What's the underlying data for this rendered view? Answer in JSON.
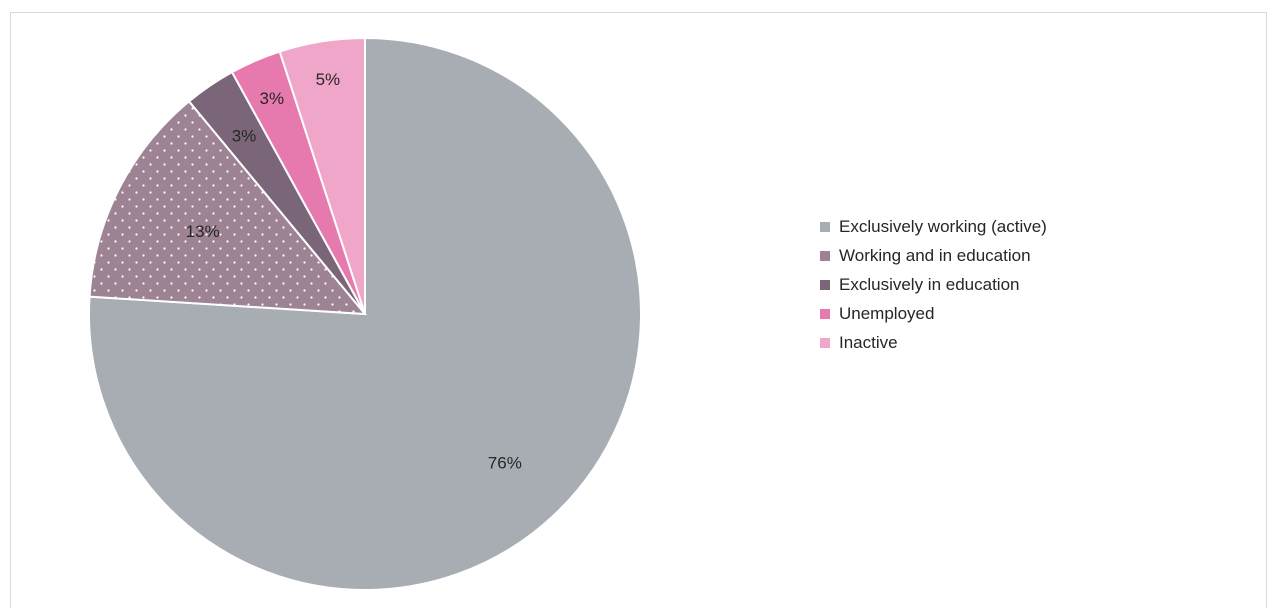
{
  "chart_data": {
    "type": "pie",
    "title": "",
    "categories": [
      "Exclusively working (active)",
      "Working and in education",
      "Exclusively in education",
      "Unemployed",
      "Inactive"
    ],
    "values": [
      76,
      13,
      3,
      3,
      5
    ],
    "data_labels": [
      "76%",
      "13%",
      "3%",
      "3%",
      "5%"
    ],
    "colors": [
      "#a8adb3",
      "#9e8394",
      "#7b6679",
      "#e67aae",
      "#f0a6c8"
    ],
    "patterns": [
      "solid",
      "dotted",
      "solid",
      "solid",
      "solid"
    ],
    "start_angle": "12 o'clock",
    "direction": "clockwise",
    "legend_position": "right"
  }
}
